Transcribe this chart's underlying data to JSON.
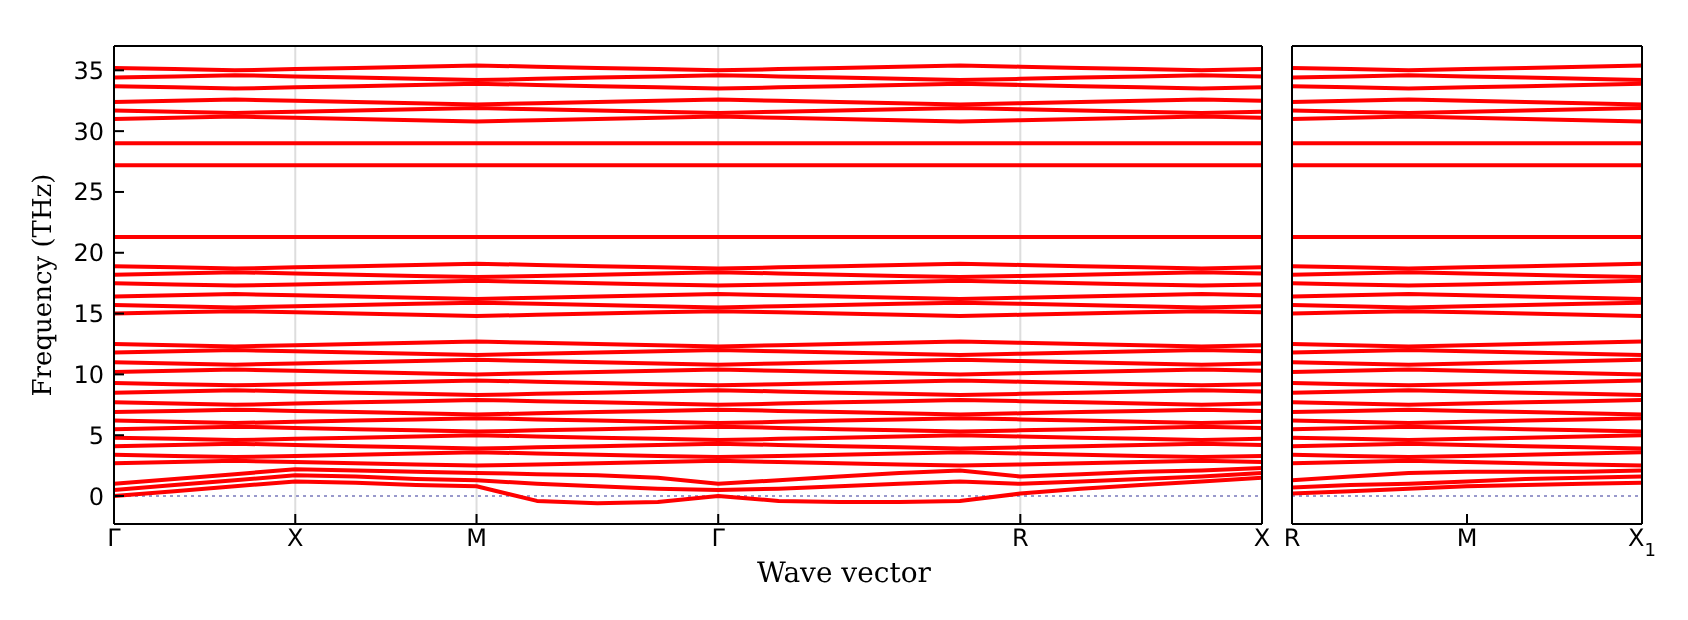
{
  "chart_data": [
    {
      "type": "line",
      "ylabel": "Frequency (THz)",
      "xlabel": "Wave vector",
      "color": "#ff0000",
      "grid": "x",
      "line_style": "solid",
      "categories": [
        "Γ",
        null,
        null,
        "X",
        null,
        null,
        "M",
        null,
        null,
        null,
        "Γ",
        null,
        null,
        null,
        null,
        "R",
        null,
        null,
        null,
        "X"
      ],
      "ylim": [
        -2.3,
        37
      ],
      "yticks": [
        0,
        5,
        10,
        15,
        20,
        25,
        30,
        35
      ],
      "ref_lines": [
        {
          "axis": "y",
          "value": 0,
          "color": "#9999cc",
          "line_style": "dotted"
        }
      ],
      "series": [
        {
          "values": [
            0,
            0.4,
            0.8,
            1.2,
            1.1,
            0.9,
            0.8,
            -0.4,
            -0.6,
            -0.5,
            0,
            -0.4,
            -0.5,
            -0.5,
            -0.4,
            0.2,
            0.6,
            0.9,
            1.2,
            1.5
          ]
        },
        {
          "values": [
            0.5,
            0.9,
            1.3,
            1.7,
            1.6,
            1.4,
            1.3,
            1.0,
            0.8,
            0.6,
            0.5,
            0.6,
            0.8,
            1.0,
            1.2,
            1.0,
            1.2,
            1.4,
            1.6,
            1.9
          ]
        },
        {
          "values": [
            1.0,
            1.4,
            1.8,
            2.2,
            2.1,
            2.0,
            1.9,
            1.8,
            1.7,
            1.5,
            1.0,
            1.3,
            1.6,
            1.9,
            2.1,
            1.6,
            1.8,
            2.0,
            2.1,
            2.3
          ]
        },
        {
          "values": [
            2.7,
            2.8,
            2.9,
            2.8,
            2.7,
            2.6,
            2.5,
            2.6,
            2.7,
            2.8,
            2.9,
            2.8,
            2.7,
            2.6,
            2.5,
            2.6,
            2.7,
            2.8,
            2.9,
            2.8
          ]
        },
        {
          "values": [
            3.4,
            3.3,
            3.2,
            3.3,
            3.4,
            3.5,
            3.6,
            3.5,
            3.4,
            3.3,
            3.2,
            3.3,
            3.4,
            3.5,
            3.6,
            3.5,
            3.4,
            3.3,
            3.2,
            3.3
          ]
        },
        {
          "values": [
            4.1,
            4.2,
            4.3,
            4.2,
            4.1,
            4.0,
            3.9,
            4.0,
            4.1,
            4.2,
            4.3,
            4.2,
            4.1,
            4.0,
            3.9,
            4.0,
            4.1,
            4.2,
            4.3,
            4.2
          ]
        },
        {
          "values": [
            4.8,
            4.7,
            4.6,
            4.7,
            4.8,
            4.9,
            5.0,
            4.9,
            4.8,
            4.7,
            4.6,
            4.7,
            4.8,
            4.9,
            5.0,
            4.9,
            4.8,
            4.7,
            4.6,
            4.7
          ]
        },
        {
          "values": [
            5.5,
            5.6,
            5.7,
            5.6,
            5.5,
            5.4,
            5.3,
            5.4,
            5.5,
            5.6,
            5.7,
            5.6,
            5.5,
            5.4,
            5.3,
            5.4,
            5.5,
            5.6,
            5.7,
            5.6
          ]
        },
        {
          "values": [
            6.2,
            6.1,
            6.0,
            6.1,
            6.2,
            6.3,
            6.4,
            6.3,
            6.2,
            6.1,
            6.0,
            6.1,
            6.2,
            6.3,
            6.4,
            6.3,
            6.2,
            6.1,
            6.0,
            6.1
          ]
        },
        {
          "values": [
            6.9,
            7.0,
            7.1,
            7.0,
            6.9,
            6.8,
            6.7,
            6.8,
            6.9,
            7.0,
            7.1,
            7.0,
            6.9,
            6.8,
            6.7,
            6.8,
            6.9,
            7.0,
            7.1,
            7.0
          ]
        },
        {
          "values": [
            7.7,
            7.6,
            7.5,
            7.6,
            7.7,
            7.8,
            7.9,
            7.8,
            7.7,
            7.6,
            7.5,
            7.6,
            7.7,
            7.8,
            7.9,
            7.8,
            7.7,
            7.6,
            7.5,
            7.6
          ]
        },
        {
          "values": [
            8.5,
            8.6,
            8.7,
            8.6,
            8.5,
            8.4,
            8.3,
            8.4,
            8.5,
            8.6,
            8.7,
            8.6,
            8.5,
            8.4,
            8.3,
            8.4,
            8.5,
            8.6,
            8.7,
            8.6
          ]
        },
        {
          "values": [
            9.3,
            9.2,
            9.1,
            9.2,
            9.3,
            9.4,
            9.5,
            9.4,
            9.3,
            9.2,
            9.1,
            9.2,
            9.3,
            9.4,
            9.5,
            9.4,
            9.3,
            9.2,
            9.1,
            9.2
          ]
        },
        {
          "values": [
            10.2,
            10.3,
            10.4,
            10.3,
            10.2,
            10.1,
            10.0,
            10.1,
            10.2,
            10.3,
            10.4,
            10.3,
            10.2,
            10.1,
            10.0,
            10.1,
            10.2,
            10.3,
            10.4,
            10.3
          ]
        },
        {
          "values": [
            11.0,
            10.9,
            10.8,
            10.9,
            11.0,
            11.1,
            11.2,
            11.1,
            11.0,
            10.9,
            10.8,
            10.9,
            11.0,
            11.1,
            11.2,
            11.1,
            11.0,
            10.9,
            10.8,
            10.9
          ]
        },
        {
          "values": [
            11.8,
            11.9,
            12.0,
            11.9,
            11.8,
            11.7,
            11.6,
            11.7,
            11.8,
            11.9,
            12.0,
            11.9,
            11.8,
            11.7,
            11.6,
            11.7,
            11.8,
            11.9,
            12.0,
            11.9
          ]
        },
        {
          "values": [
            12.5,
            12.4,
            12.3,
            12.4,
            12.5,
            12.6,
            12.7,
            12.6,
            12.5,
            12.4,
            12.3,
            12.4,
            12.5,
            12.6,
            12.7,
            12.6,
            12.5,
            12.4,
            12.3,
            12.4
          ]
        },
        {
          "values": [
            15.0,
            15.1,
            15.2,
            15.1,
            15.0,
            14.9,
            14.8,
            14.9,
            15.0,
            15.1,
            15.2,
            15.1,
            15.0,
            14.9,
            14.8,
            14.9,
            15.0,
            15.1,
            15.2,
            15.1
          ]
        },
        {
          "values": [
            15.7,
            15.6,
            15.5,
            15.6,
            15.7,
            15.8,
            15.9,
            15.8,
            15.7,
            15.6,
            15.5,
            15.6,
            15.7,
            15.8,
            15.9,
            15.8,
            15.7,
            15.6,
            15.5,
            15.6
          ]
        },
        {
          "values": [
            16.4,
            16.5,
            16.6,
            16.5,
            16.4,
            16.3,
            16.2,
            16.3,
            16.4,
            16.5,
            16.6,
            16.5,
            16.4,
            16.3,
            16.2,
            16.3,
            16.4,
            16.5,
            16.6,
            16.5
          ]
        },
        {
          "values": [
            17.5,
            17.4,
            17.3,
            17.4,
            17.5,
            17.6,
            17.7,
            17.6,
            17.5,
            17.4,
            17.3,
            17.4,
            17.5,
            17.6,
            17.7,
            17.6,
            17.5,
            17.4,
            17.3,
            17.4
          ]
        },
        {
          "values": [
            18.2,
            18.3,
            18.4,
            18.3,
            18.2,
            18.1,
            18.0,
            18.1,
            18.2,
            18.3,
            18.4,
            18.3,
            18.2,
            18.1,
            18.0,
            18.1,
            18.2,
            18.3,
            18.4,
            18.3
          ]
        },
        {
          "values": [
            18.9,
            18.8,
            18.7,
            18.8,
            18.9,
            19.0,
            19.1,
            19.0,
            18.9,
            18.8,
            18.7,
            18.8,
            18.9,
            19.0,
            19.1,
            19.0,
            18.9,
            18.8,
            18.7,
            18.8
          ]
        },
        {
          "values": [
            21.3,
            21.3,
            21.3,
            21.3,
            21.3,
            21.3,
            21.3,
            21.3,
            21.3,
            21.3,
            21.3,
            21.3,
            21.3,
            21.3,
            21.3,
            21.3,
            21.3,
            21.3,
            21.3,
            21.3
          ]
        },
        {
          "values": [
            27.2,
            27.2,
            27.2,
            27.2,
            27.2,
            27.2,
            27.2,
            27.2,
            27.2,
            27.2,
            27.2,
            27.2,
            27.2,
            27.2,
            27.2,
            27.2,
            27.2,
            27.2,
            27.2,
            27.2
          ]
        },
        {
          "values": [
            29.0,
            29.0,
            29.0,
            29.0,
            29.0,
            29.0,
            29.0,
            29.0,
            29.0,
            29.0,
            29.0,
            29.0,
            29.0,
            29.0,
            29.0,
            29.0,
            29.0,
            29.0,
            29.0,
            29.0
          ]
        },
        {
          "values": [
            31.0,
            31.1,
            31.2,
            31.1,
            31.0,
            30.9,
            30.8,
            30.9,
            31.0,
            31.1,
            31.2,
            31.1,
            31.0,
            30.9,
            30.8,
            30.9,
            31.0,
            31.1,
            31.2,
            31.1
          ]
        },
        {
          "values": [
            31.7,
            31.6,
            31.5,
            31.6,
            31.7,
            31.8,
            31.9,
            31.8,
            31.7,
            31.6,
            31.5,
            31.6,
            31.7,
            31.8,
            31.9,
            31.8,
            31.7,
            31.6,
            31.5,
            31.6
          ]
        },
        {
          "values": [
            32.4,
            32.5,
            32.6,
            32.5,
            32.4,
            32.3,
            32.2,
            32.3,
            32.4,
            32.5,
            32.6,
            32.5,
            32.4,
            32.3,
            32.2,
            32.3,
            32.4,
            32.5,
            32.6,
            32.5
          ]
        },
        {
          "values": [
            33.7,
            33.6,
            33.5,
            33.6,
            33.7,
            33.8,
            33.9,
            33.8,
            33.7,
            33.6,
            33.5,
            33.6,
            33.7,
            33.8,
            33.9,
            33.8,
            33.7,
            33.6,
            33.5,
            33.6
          ]
        },
        {
          "values": [
            34.4,
            34.5,
            34.6,
            34.5,
            34.4,
            34.3,
            34.2,
            34.3,
            34.4,
            34.5,
            34.6,
            34.5,
            34.4,
            34.3,
            34.2,
            34.3,
            34.4,
            34.5,
            34.6,
            34.5
          ]
        },
        {
          "values": [
            35.2,
            35.1,
            35.0,
            35.1,
            35.2,
            35.3,
            35.4,
            35.3,
            35.2,
            35.1,
            35.0,
            35.1,
            35.2,
            35.3,
            35.4,
            35.3,
            35.2,
            35.1,
            35.0,
            35.1
          ]
        }
      ]
    },
    {
      "type": "line",
      "color": "#ff0000",
      "line_style": "solid",
      "tick_labels": "x",
      "categories": [
        "R",
        null,
        null,
        "M",
        null,
        null,
        "X$_{1}$"
      ],
      "ylim": [
        -2.3,
        37
      ],
      "yticks": [
        0,
        5,
        10,
        15,
        20,
        25,
        30,
        35
      ],
      "ref_lines": [
        {
          "axis": "y",
          "value": 0,
          "color": "#9999cc",
          "line_style": "dotted"
        }
      ],
      "series": [
        {
          "values": [
            0.2,
            0.4,
            0.6,
            0.8,
            0.9,
            1.0,
            1.1
          ]
        },
        {
          "values": [
            0.7,
            0.9,
            1.0,
            1.2,
            1.4,
            1.5,
            1.6
          ]
        },
        {
          "values": [
            1.3,
            1.6,
            1.9,
            2.0,
            2.0,
            2.0,
            2.1
          ]
        },
        {
          "values": [
            2.7,
            2.8,
            2.9,
            2.8,
            2.7,
            2.6,
            2.5
          ]
        },
        {
          "values": [
            3.4,
            3.3,
            3.2,
            3.3,
            3.4,
            3.5,
            3.6
          ]
        },
        {
          "values": [
            4.1,
            4.2,
            4.3,
            4.2,
            4.1,
            4.0,
            3.9
          ]
        },
        {
          "values": [
            4.8,
            4.7,
            4.6,
            4.7,
            4.8,
            4.9,
            5.0
          ]
        },
        {
          "values": [
            5.5,
            5.6,
            5.7,
            5.6,
            5.5,
            5.4,
            5.3
          ]
        },
        {
          "values": [
            6.2,
            6.1,
            6.0,
            6.1,
            6.2,
            6.3,
            6.4
          ]
        },
        {
          "values": [
            6.9,
            7.0,
            7.1,
            7.0,
            6.9,
            6.8,
            6.7
          ]
        },
        {
          "values": [
            7.7,
            7.6,
            7.5,
            7.6,
            7.7,
            7.8,
            7.9
          ]
        },
        {
          "values": [
            8.5,
            8.6,
            8.7,
            8.6,
            8.5,
            8.4,
            8.3
          ]
        },
        {
          "values": [
            9.3,
            9.2,
            9.1,
            9.2,
            9.3,
            9.4,
            9.5
          ]
        },
        {
          "values": [
            10.2,
            10.3,
            10.4,
            10.3,
            10.2,
            10.1,
            10.0
          ]
        },
        {
          "values": [
            11.0,
            10.9,
            10.8,
            10.9,
            11.0,
            11.1,
            11.2
          ]
        },
        {
          "values": [
            11.8,
            11.9,
            12.0,
            11.9,
            11.8,
            11.7,
            11.6
          ]
        },
        {
          "values": [
            12.5,
            12.4,
            12.3,
            12.4,
            12.5,
            12.6,
            12.7
          ]
        },
        {
          "values": [
            15.0,
            15.1,
            15.2,
            15.1,
            15.0,
            14.9,
            14.8
          ]
        },
        {
          "values": [
            15.7,
            15.6,
            15.5,
            15.6,
            15.7,
            15.8,
            15.9
          ]
        },
        {
          "values": [
            16.4,
            16.5,
            16.6,
            16.5,
            16.4,
            16.3,
            16.2
          ]
        },
        {
          "values": [
            17.5,
            17.4,
            17.3,
            17.4,
            17.5,
            17.6,
            17.7
          ]
        },
        {
          "values": [
            18.2,
            18.3,
            18.4,
            18.3,
            18.2,
            18.1,
            18.0
          ]
        },
        {
          "values": [
            18.9,
            18.8,
            18.7,
            18.8,
            18.9,
            19.0,
            19.1
          ]
        },
        {
          "values": [
            21.3,
            21.3,
            21.3,
            21.3,
            21.3,
            21.3,
            21.3
          ]
        },
        {
          "values": [
            27.2,
            27.2,
            27.2,
            27.2,
            27.2,
            27.2,
            27.2
          ]
        },
        {
          "values": [
            29.0,
            29.0,
            29.0,
            29.0,
            29.0,
            29.0,
            29.0
          ]
        },
        {
          "values": [
            31.0,
            31.1,
            31.2,
            31.1,
            31.0,
            30.9,
            30.8
          ]
        },
        {
          "values": [
            31.7,
            31.6,
            31.5,
            31.6,
            31.7,
            31.8,
            31.9
          ]
        },
        {
          "values": [
            32.4,
            32.5,
            32.6,
            32.5,
            32.4,
            32.3,
            32.2
          ]
        },
        {
          "values": [
            33.7,
            33.6,
            33.5,
            33.6,
            33.7,
            33.8,
            33.9
          ]
        },
        {
          "values": [
            34.4,
            34.5,
            34.6,
            34.5,
            34.4,
            34.3,
            34.2
          ]
        },
        {
          "values": [
            35.2,
            35.1,
            35.0,
            35.1,
            35.2,
            35.3,
            35.4
          ]
        }
      ]
    }
  ]
}
